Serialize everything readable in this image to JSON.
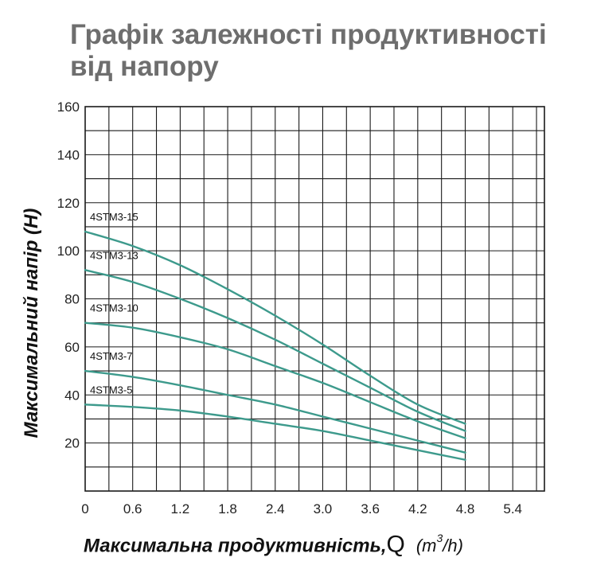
{
  "title": "Графік залежності продуктивності від напору",
  "chart_data": {
    "type": "line",
    "xlabel_prefix": "Максимальна продуктивність,",
    "xlabel_symbol": "Q",
    "xlabel_unit_open": "(m",
    "xlabel_unit_power": "3",
    "xlabel_unit_close": "/h)",
    "ylabel": "Максимальний напір (Н)",
    "xlim": [
      0,
      5.8
    ],
    "ylim": [
      0,
      160
    ],
    "x_ticks": [
      "0",
      "0.6",
      "1.2",
      "1.8",
      "2.4",
      "3.0",
      "3.6",
      "4.2",
      "4.8",
      "5.4"
    ],
    "y_ticks": [
      "20",
      "40",
      "60",
      "80",
      "100",
      "120",
      "140",
      "160"
    ],
    "grid": true,
    "line_color": "#3d9a8c",
    "series": [
      {
        "name": "4STM3-15",
        "x": [
          0,
          0.6,
          1.2,
          1.8,
          2.4,
          3.0,
          3.6,
          4.2,
          4.8
        ],
        "y": [
          108,
          102,
          94,
          84,
          73,
          61,
          48,
          36,
          28
        ]
      },
      {
        "name": "4STM3-13",
        "x": [
          0,
          0.6,
          1.2,
          1.8,
          2.4,
          3.0,
          3.6,
          4.2,
          4.8
        ],
        "y": [
          92,
          87,
          80,
          72,
          63,
          53,
          43,
          33,
          25
        ]
      },
      {
        "name": "4STM3-10",
        "x": [
          0,
          0.6,
          1.2,
          1.8,
          2.4,
          3.0,
          3.6,
          4.2,
          4.8
        ],
        "y": [
          70,
          68,
          64,
          59,
          52,
          45,
          37,
          29,
          22
        ]
      },
      {
        "name": "4STM3-7",
        "x": [
          0,
          0.6,
          1.2,
          1.8,
          2.4,
          3.0,
          3.6,
          4.2,
          4.8
        ],
        "y": [
          50,
          47.5,
          44,
          40,
          36,
          31,
          26,
          21,
          16
        ]
      },
      {
        "name": "4STM3-5",
        "x": [
          0,
          0.6,
          1.2,
          1.8,
          2.4,
          3.0,
          3.6,
          4.2,
          4.8
        ],
        "y": [
          36,
          35,
          33.5,
          31,
          28,
          25,
          21,
          17,
          13
        ]
      }
    ]
  }
}
